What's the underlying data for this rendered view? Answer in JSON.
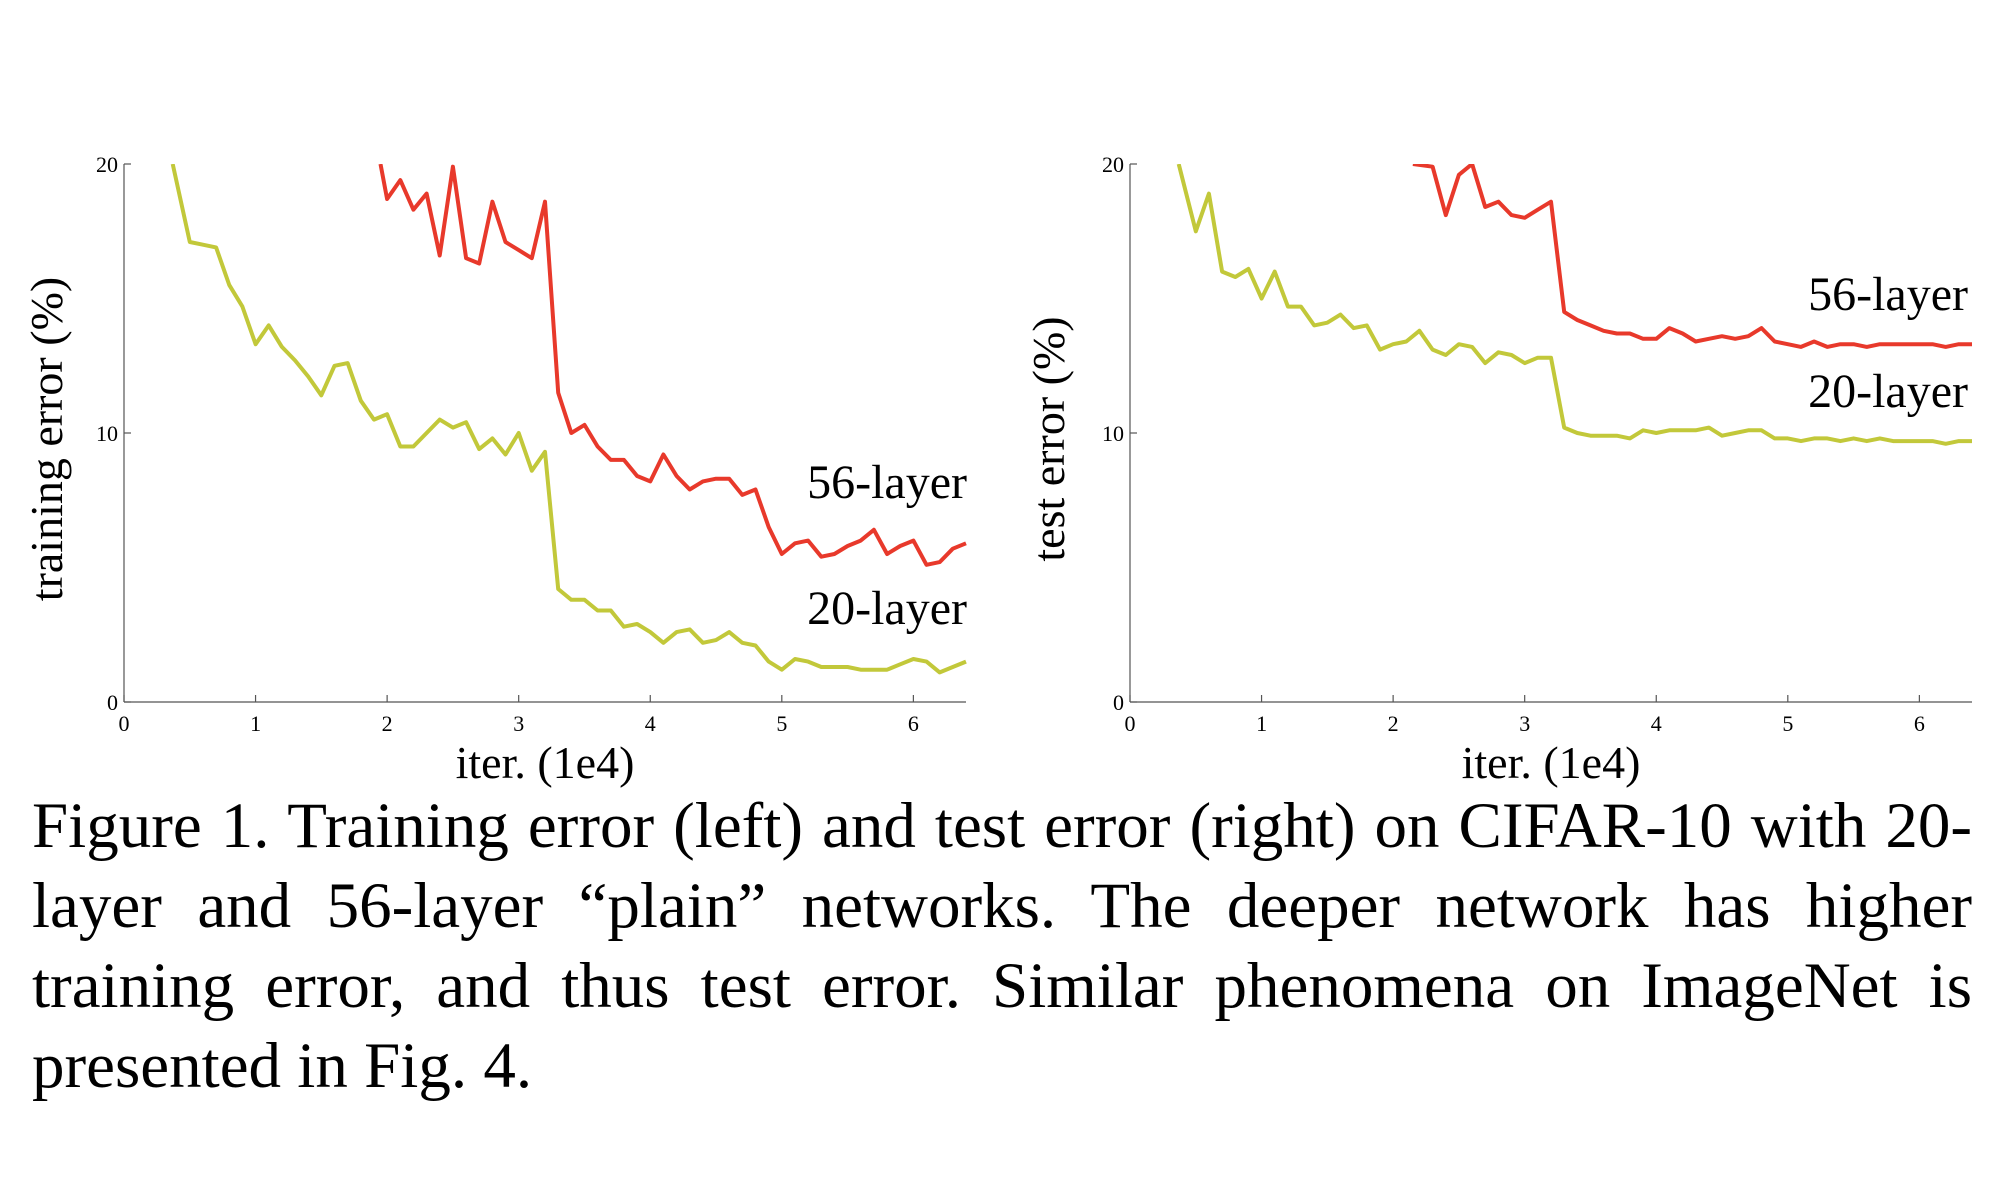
{
  "figure": {
    "caption": "Figure 1. Training error (left) and test error (right) on CIFAR-10 with 20-layer and 56-layer “plain” networks. The deeper network has higher training error, and thus test error. Similar phenomena on ImageNet is presented in Fig. 4."
  },
  "chart_data": [
    {
      "type": "line",
      "panel": "left",
      "xlabel": "iter. (1e4)",
      "ylabel": "training error (%)",
      "xlim": [
        0,
        6.4
      ],
      "ylim": [
        0,
        20
      ],
      "xticks": [
        0,
        1,
        2,
        3,
        4,
        5,
        6
      ],
      "yticks": [
        0,
        10,
        20
      ],
      "grid": false,
      "series": [
        {
          "name": "56-layer",
          "color": "#e8392b",
          "x": [
            1.95,
            2.0,
            2.1,
            2.2,
            2.3,
            2.4,
            2.5,
            2.6,
            2.7,
            2.8,
            2.9,
            3.0,
            3.1,
            3.2,
            3.3,
            3.4,
            3.5,
            3.6,
            3.7,
            3.8,
            3.9,
            4.0,
            4.1,
            4.2,
            4.3,
            4.4,
            4.5,
            4.6,
            4.7,
            4.8,
            4.9,
            5.0,
            5.1,
            5.2,
            5.3,
            5.4,
            5.5,
            5.6,
            5.7,
            5.8,
            5.9,
            6.0,
            6.1,
            6.2,
            6.3,
            6.4
          ],
          "y": [
            20,
            18.7,
            19.4,
            18.3,
            18.9,
            16.6,
            19.9,
            16.5,
            16.3,
            18.6,
            17.1,
            16.8,
            16.5,
            18.6,
            11.5,
            10.0,
            10.3,
            9.5,
            9.0,
            9.0,
            8.4,
            8.2,
            9.2,
            8.4,
            7.9,
            8.2,
            8.3,
            8.3,
            7.7,
            7.9,
            6.5,
            5.5,
            5.9,
            6.0,
            5.4,
            5.5,
            5.8,
            6.0,
            6.4,
            5.5,
            5.8,
            6.0,
            5.1,
            5.2,
            5.7,
            5.9
          ]
        },
        {
          "name": "20-layer",
          "color": "#c2c83a",
          "x": [
            0.37,
            0.5,
            0.6,
            0.7,
            0.8,
            0.9,
            1.0,
            1.1,
            1.2,
            1.3,
            1.4,
            1.5,
            1.6,
            1.7,
            1.8,
            1.9,
            2.0,
            2.1,
            2.2,
            2.3,
            2.4,
            2.5,
            2.6,
            2.7,
            2.8,
            2.9,
            3.0,
            3.1,
            3.2,
            3.3,
            3.4,
            3.5,
            3.6,
            3.7,
            3.8,
            3.9,
            4.0,
            4.1,
            4.2,
            4.3,
            4.4,
            4.5,
            4.6,
            4.7,
            4.8,
            4.9,
            5.0,
            5.1,
            5.2,
            5.3,
            5.4,
            5.5,
            5.6,
            5.7,
            5.8,
            5.9,
            6.0,
            6.1,
            6.2,
            6.3,
            6.4
          ],
          "y": [
            20,
            17.1,
            17.0,
            16.9,
            15.5,
            14.7,
            13.3,
            14.0,
            13.2,
            12.7,
            12.1,
            11.4,
            12.5,
            12.6,
            11.2,
            10.5,
            10.7,
            9.5,
            9.5,
            10.0,
            10.5,
            10.2,
            10.4,
            9.4,
            9.8,
            9.2,
            10.0,
            8.6,
            9.3,
            4.2,
            3.8,
            3.8,
            3.4,
            3.4,
            2.8,
            2.9,
            2.6,
            2.2,
            2.6,
            2.7,
            2.2,
            2.3,
            2.6,
            2.2,
            2.1,
            1.5,
            1.2,
            1.6,
            1.5,
            1.3,
            1.3,
            1.3,
            1.2,
            1.2,
            1.2,
            1.4,
            1.6,
            1.5,
            1.1,
            1.3,
            1.5
          ]
        }
      ]
    },
    {
      "type": "line",
      "panel": "right",
      "xlabel": "iter. (1e4)",
      "ylabel": "test error (%)",
      "xlim": [
        0,
        6.4
      ],
      "ylim": [
        0,
        20
      ],
      "xticks": [
        0,
        1,
        2,
        3,
        4,
        5,
        6
      ],
      "yticks": [
        0,
        10,
        20
      ],
      "grid": false,
      "series": [
        {
          "name": "56-layer",
          "color": "#e8392b",
          "x": [
            2.15,
            2.3,
            2.4,
            2.5,
            2.6,
            2.7,
            2.8,
            2.9,
            3.0,
            3.1,
            3.2,
            3.3,
            3.4,
            3.5,
            3.6,
            3.7,
            3.8,
            3.9,
            4.0,
            4.1,
            4.2,
            4.3,
            4.4,
            4.5,
            4.6,
            4.7,
            4.8,
            4.9,
            5.0,
            5.1,
            5.2,
            5.3,
            5.4,
            5.5,
            5.6,
            5.7,
            5.8,
            5.9,
            6.0,
            6.1,
            6.2,
            6.3,
            6.4
          ],
          "y": [
            20,
            19.9,
            18.1,
            19.6,
            20.0,
            18.4,
            18.6,
            18.1,
            18.0,
            18.3,
            18.6,
            14.5,
            14.2,
            14.0,
            13.8,
            13.7,
            13.7,
            13.5,
            13.5,
            13.9,
            13.7,
            13.4,
            13.5,
            13.6,
            13.5,
            13.6,
            13.9,
            13.4,
            13.3,
            13.2,
            13.4,
            13.2,
            13.3,
            13.3,
            13.2,
            13.3,
            13.3,
            13.3,
            13.3,
            13.3,
            13.2,
            13.3,
            13.3
          ]
        },
        {
          "name": "20-layer",
          "color": "#c2c83a",
          "x": [
            0.37,
            0.5,
            0.6,
            0.7,
            0.8,
            0.9,
            1.0,
            1.1,
            1.2,
            1.3,
            1.4,
            1.5,
            1.6,
            1.7,
            1.8,
            1.9,
            2.0,
            2.1,
            2.2,
            2.3,
            2.4,
            2.5,
            2.6,
            2.7,
            2.8,
            2.9,
            3.0,
            3.1,
            3.2,
            3.3,
            3.4,
            3.5,
            3.6,
            3.7,
            3.8,
            3.9,
            4.0,
            4.1,
            4.2,
            4.3,
            4.4,
            4.5,
            4.6,
            4.7,
            4.8,
            4.9,
            5.0,
            5.1,
            5.2,
            5.3,
            5.4,
            5.5,
            5.6,
            5.7,
            5.8,
            5.9,
            6.0,
            6.1,
            6.2,
            6.3,
            6.4
          ],
          "y": [
            20,
            17.5,
            18.9,
            16.0,
            15.8,
            16.1,
            15.0,
            16.0,
            14.7,
            14.7,
            14.0,
            14.1,
            14.4,
            13.9,
            14.0,
            13.1,
            13.3,
            13.4,
            13.8,
            13.1,
            12.9,
            13.3,
            13.2,
            12.6,
            13.0,
            12.9,
            12.6,
            12.8,
            12.8,
            10.2,
            10.0,
            9.9,
            9.9,
            9.9,
            9.8,
            10.1,
            10.0,
            10.1,
            10.1,
            10.1,
            10.2,
            9.9,
            10.0,
            10.1,
            10.1,
            9.8,
            9.8,
            9.7,
            9.8,
            9.8,
            9.7,
            9.8,
            9.7,
            9.8,
            9.7,
            9.7,
            9.7,
            9.7,
            9.6,
            9.7,
            9.7
          ]
        }
      ]
    }
  ]
}
